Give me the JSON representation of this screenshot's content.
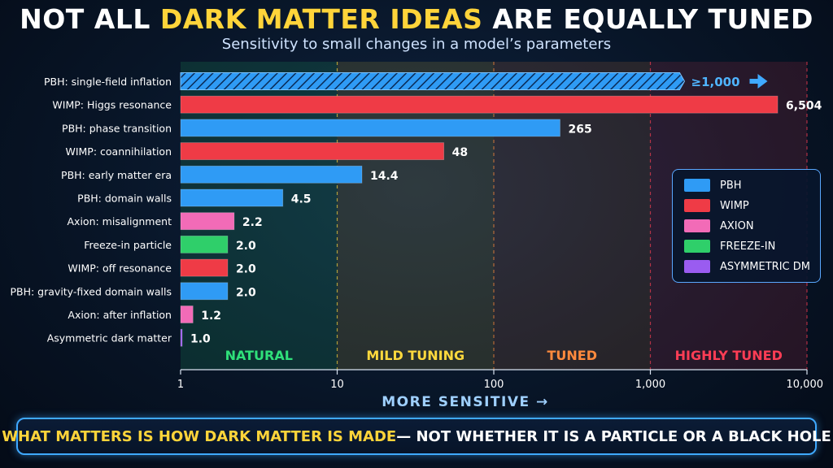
{
  "header": {
    "title_part1": "NOT ALL ",
    "title_highlight": "DARK MATTER IDEAS",
    "title_part2": " ARE EQUALLY TUNED",
    "subtitle": "Sensitivity to small changes in a model’s parameters"
  },
  "banner": {
    "highlight": "WHAT MATTERS IS HOW DARK MATTER IS MADE",
    "rest": " — NOT WHETHER IT IS A PARTICLE OR A BLACK HOLE"
  },
  "colors": {
    "PBH": "#2f9bf5",
    "WIMP": "#ef3b46",
    "AXION": "#f26bb7",
    "FREEZE-IN": "#2fcf6a",
    "ASYMMETRIC DM": "#9a5cf0",
    "highlight": "#ffd43a"
  },
  "chart_data": {
    "type": "bar",
    "orientation": "horizontal",
    "x_scale": "log",
    "xlim": [
      1,
      10000
    ],
    "x_ticks": [
      1,
      10,
      100,
      1000,
      10000
    ],
    "x_tick_labels": [
      "1",
      "10",
      "100",
      "1,000",
      "10,000"
    ],
    "xlabel": "MORE SENSITIVE →",
    "regions": [
      {
        "label": "NATURAL",
        "from": 1,
        "to": 10,
        "color": "#2fe07a"
      },
      {
        "label": "MILD TUNING",
        "from": 10,
        "to": 100,
        "color": "#ffd93d"
      },
      {
        "label": "TUNED",
        "from": 100,
        "to": 1000,
        "color": "#ff8a3d"
      },
      {
        "label": "HIGHLY TUNED",
        "from": 1000,
        "to": 10000,
        "color": "#ff3d55"
      }
    ],
    "bars": [
      {
        "label": "PBH: single-field inflation",
        "value": 1000,
        "value_label": "≥1,000",
        "category": "PBH",
        "lower_bound": true
      },
      {
        "label": "WIMP: Higgs resonance",
        "value": 6504,
        "value_label": "6,504",
        "category": "WIMP"
      },
      {
        "label": "PBH: phase transition",
        "value": 265,
        "value_label": "265",
        "category": "PBH"
      },
      {
        "label": "WIMP: coannihilation",
        "value": 48,
        "value_label": "48",
        "category": "WIMP"
      },
      {
        "label": "PBH: early matter era",
        "value": 14.4,
        "value_label": "14.4",
        "category": "PBH"
      },
      {
        "label": "PBH: domain walls",
        "value": 4.5,
        "value_label": "4.5",
        "category": "PBH"
      },
      {
        "label": "Axion: misalignment",
        "value": 2.2,
        "value_label": "2.2",
        "category": "AXION"
      },
      {
        "label": "Freeze-in particle",
        "value": 2.0,
        "value_label": "2.0",
        "category": "FREEZE-IN"
      },
      {
        "label": "WIMP: off resonance",
        "value": 2.0,
        "value_label": "2.0",
        "category": "WIMP"
      },
      {
        "label": "PBH: gravity-fixed domain walls",
        "value": 2.0,
        "value_label": "2.0",
        "category": "PBH"
      },
      {
        "label": "Axion: after inflation",
        "value": 1.2,
        "value_label": "1.2",
        "category": "AXION"
      },
      {
        "label": "Asymmetric dark matter",
        "value": 1.0,
        "value_label": "1.0",
        "category": "ASYMMETRIC DM"
      }
    ],
    "legend": {
      "placement": "right",
      "entries": [
        "PBH",
        "WIMP",
        "AXION",
        "FREEZE-IN",
        "ASYMMETRIC DM"
      ]
    }
  }
}
